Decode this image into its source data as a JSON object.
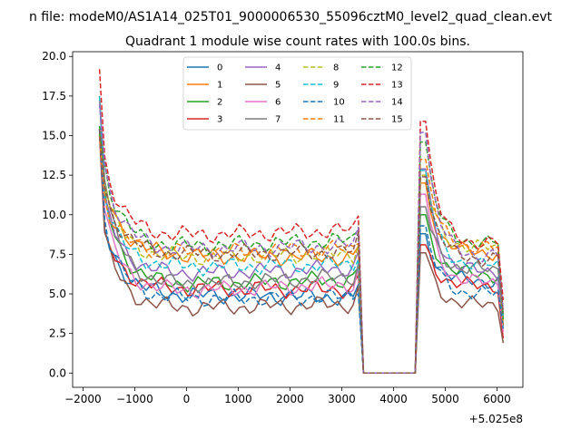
{
  "chart_data": {
    "type": "line",
    "suptitle": "n file: modeM0/AS1A14_025T01_9000006530_55096cztM0_level2_quad_clean.evt",
    "title": "Quadrant 1 module wise count rates with 100.0s bins.",
    "xlabel": "",
    "ylabel": "",
    "x_offset_label": "+5.025e8",
    "xlim": [
      -2200,
      6500
    ],
    "ylim": [
      -0.9,
      20.3
    ],
    "x_ticks": [
      -2000,
      -1000,
      0,
      1000,
      2000,
      3000,
      4000,
      5000,
      6000
    ],
    "x_tick_labels": [
      "−2000",
      "−1000",
      "0",
      "1000",
      "2000",
      "3000",
      "4000",
      "5000",
      "6000"
    ],
    "y_ticks": [
      0,
      2.5,
      5,
      7.5,
      10,
      12.5,
      15,
      17.5,
      20
    ],
    "y_tick_labels": [
      "0.0",
      "2.5",
      "5.0",
      "7.5",
      "10.0",
      "12.5",
      "15.0",
      "17.5",
      "20.0"
    ],
    "grid": false,
    "legend_position": "top-center",
    "series": [
      {
        "name": "0",
        "color": "#1f77b4",
        "dash": "solid",
        "peak": 15.4,
        "curve_start": 9.1,
        "plateau": 4.9,
        "slope": -0.03,
        "peak2": 8.8,
        "plateau2": 5.8,
        "end": 3.6
      },
      {
        "name": "1",
        "color": "#ff7f0e",
        "dash": "solid",
        "peak": 15.0,
        "curve_start": 12.0,
        "plateau": 7.4,
        "slope": -0.03,
        "peak2": 12.0,
        "plateau2": 7.6,
        "end": 3.4
      },
      {
        "name": "2",
        "color": "#2ca02c",
        "dash": "solid",
        "peak": 15.6,
        "curve_start": 11.5,
        "plateau": 5.6,
        "slope": 0.1,
        "peak2": 10.0,
        "plateau2": 6.2,
        "end": 3.0
      },
      {
        "name": "3",
        "color": "#d62728",
        "dash": "solid",
        "peak": 15.0,
        "curve_start": 8.9,
        "plateau": 5.3,
        "slope": 0.0,
        "peak2": 8.1,
        "plateau2": 5.5,
        "end": 2.2
      },
      {
        "name": "4",
        "color": "#9467bd",
        "dash": "solid",
        "peak": 17.5,
        "curve_start": 11.2,
        "plateau": 6.3,
        "slope": 0.1,
        "peak2": 12.9,
        "plateau2": 6.4,
        "end": 3.5
      },
      {
        "name": "5",
        "color": "#8c564b",
        "dash": "solid",
        "peak": 15.4,
        "curve_start": 8.9,
        "plateau": 4.1,
        "slope": 0.08,
        "peak2": 7.6,
        "plateau2": 4.3,
        "end": 1.9
      },
      {
        "name": "6",
        "color": "#e377c2",
        "dash": "solid",
        "peak": 15.4,
        "curve_start": 10.3,
        "plateau": 5.2,
        "slope": 0.12,
        "peak2": 11.3,
        "plateau2": 5.7,
        "end": 2.6
      },
      {
        "name": "7",
        "color": "#7f7f7f",
        "dash": "solid",
        "peak": 17.5,
        "curve_start": 12.2,
        "plateau": 5.6,
        "slope": 0.15,
        "peak2": 10.5,
        "plateau2": 6.5,
        "end": 3.1
      },
      {
        "name": "8",
        "color": "#bcbd22",
        "dash": "dashed",
        "peak": 15.2,
        "curve_start": 11.9,
        "plateau": 7.3,
        "slope": 0.07,
        "peak2": 12.5,
        "plateau2": 7.9,
        "end": 3.7
      },
      {
        "name": "9",
        "color": "#17becf",
        "dash": "dashed",
        "peak": 17.5,
        "curve_start": 11.2,
        "plateau": 6.7,
        "slope": 0.05,
        "peak2": 12.8,
        "plateau2": 6.8,
        "end": 3.5
      },
      {
        "name": "10",
        "color": "#1f77b4",
        "dash": "dashed",
        "peak": 15.4,
        "curve_start": 9.7,
        "plateau": 4.7,
        "slope": 0.03,
        "peak2": 9.3,
        "plateau2": 5.0,
        "end": 2.8
      },
      {
        "name": "11",
        "color": "#ff7f0e",
        "dash": "dashed",
        "peak": 15.1,
        "curve_start": 11.1,
        "plateau": 7.6,
        "slope": 0.08,
        "peak2": 13.5,
        "plateau2": 7.9,
        "end": 3.1
      },
      {
        "name": "12",
        "color": "#2ca02c",
        "dash": "dashed",
        "peak": 15.1,
        "curve_start": 13.3,
        "plateau": 8.0,
        "slope": 0.12,
        "peak2": 14.6,
        "plateau2": 8.2,
        "end": 3.4
      },
      {
        "name": "13",
        "color": "#d62728",
        "dash": "dashed",
        "peak": 19.2,
        "curve_start": 13.7,
        "plateau": 8.7,
        "slope": 0.1,
        "peak2": 15.9,
        "plateau2": 8.2,
        "end": 4.6
      },
      {
        "name": "14",
        "color": "#9467bd",
        "dash": "dashed",
        "peak": 17.0,
        "curve_start": 13.2,
        "plateau": 7.8,
        "slope": 0.08,
        "peak2": 15.2,
        "plateau2": 7.4,
        "end": 4.0
      },
      {
        "name": "15",
        "color": "#8c564b",
        "dash": "dashed",
        "peak": 15.4,
        "curve_start": 11.7,
        "plateau": 7.5,
        "slope": 0.05,
        "peak2": 12.4,
        "plateau2": 7.2,
        "end": 3.8
      }
    ]
  }
}
